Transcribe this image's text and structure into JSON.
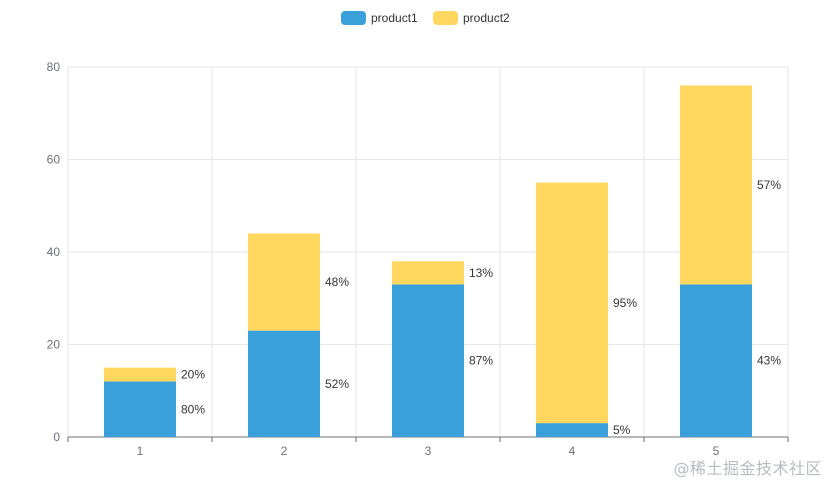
{
  "chart_data": {
    "type": "bar",
    "stacked": true,
    "categories": [
      "1",
      "2",
      "3",
      "4",
      "5"
    ],
    "series": [
      {
        "name": "product1",
        "color": "#3aa0da",
        "values": [
          12,
          23,
          33,
          3,
          33
        ],
        "labels": [
          "80%",
          "52%",
          "87%",
          "5%",
          "43%"
        ]
      },
      {
        "name": "product2",
        "color": "#ffd75f",
        "values": [
          3,
          21,
          5,
          52,
          43
        ],
        "labels": [
          "20%",
          "48%",
          "13%",
          "95%",
          "57%"
        ]
      }
    ],
    "ylim": [
      0,
      80
    ],
    "yticks": [
      0,
      20,
      40,
      60,
      80
    ],
    "grid": true,
    "legend_position": "top-center"
  },
  "watermark": "@稀土掘金技术社区",
  "colors": {
    "grid": "#e6e6e6",
    "axis": "#6e7079"
  }
}
